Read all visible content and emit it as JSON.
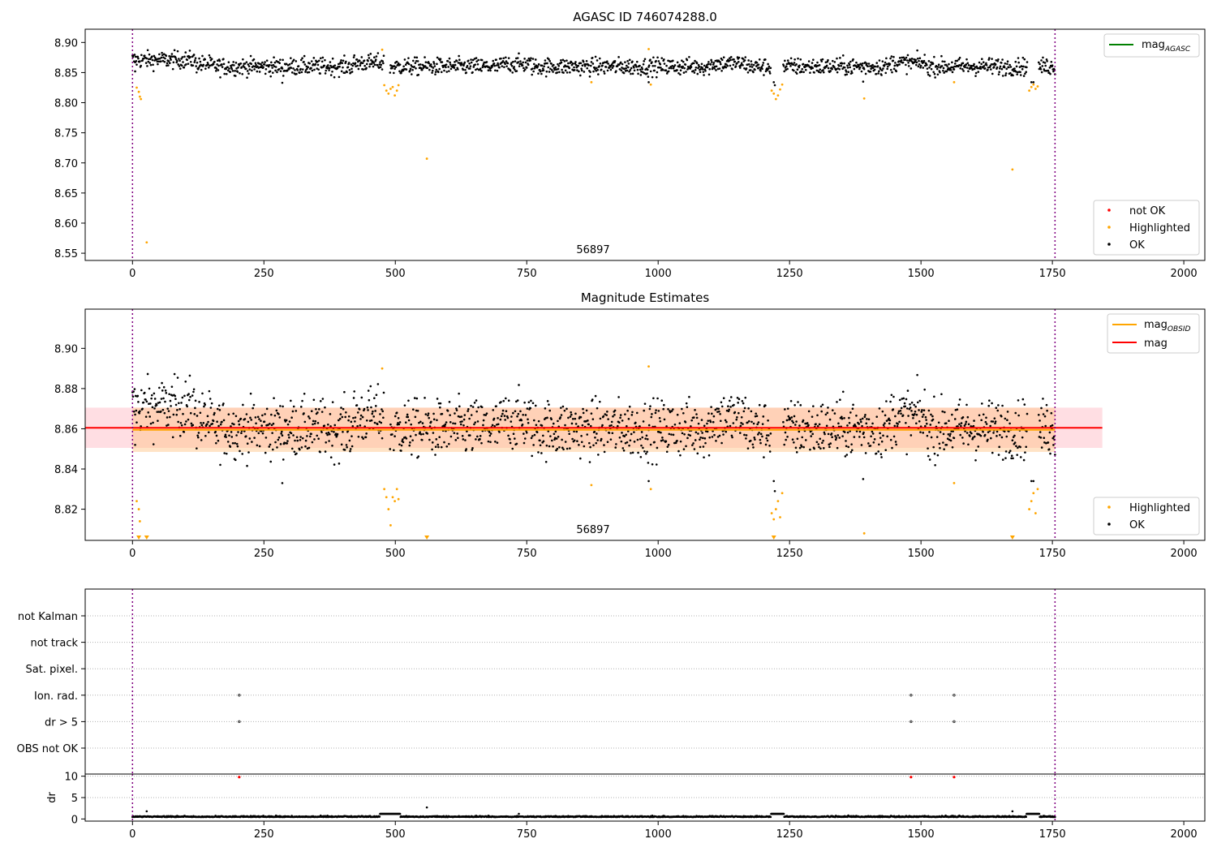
{
  "chart_data": [
    {
      "type": "scatter",
      "title": "AGASC ID 746074288.0",
      "annotation": "56897",
      "xlim": [
        -90,
        2040
      ],
      "ylim": [
        8.538,
        8.922
      ],
      "xticks": [
        0,
        250,
        500,
        750,
        1000,
        1250,
        1500,
        1750,
        2000
      ],
      "yticks": [
        8.55,
        8.6,
        8.65,
        8.7,
        8.75,
        8.8,
        8.85,
        8.9
      ],
      "vlines": [
        0,
        1755
      ],
      "baseline_level": 8.8615,
      "highlight_points": [
        [
          8,
          8.825
        ],
        [
          12,
          8.818
        ],
        [
          14,
          8.81
        ],
        [
          16,
          8.806
        ],
        [
          27,
          8.568
        ],
        [
          475,
          8.888
        ],
        [
          479,
          8.829
        ],
        [
          483,
          8.82
        ],
        [
          487,
          8.815
        ],
        [
          491,
          8.823
        ],
        [
          495,
          8.826
        ],
        [
          499,
          8.812
        ],
        [
          503,
          8.82
        ],
        [
          506,
          8.829
        ],
        [
          560,
          8.707
        ],
        [
          873,
          8.834
        ],
        [
          982,
          8.889
        ],
        [
          986,
          8.83
        ],
        [
          1216,
          8.82
        ],
        [
          1220,
          8.815
        ],
        [
          1224,
          8.806
        ],
        [
          1228,
          8.812
        ],
        [
          1232,
          8.822
        ],
        [
          1236,
          8.83
        ],
        [
          1392,
          8.807
        ],
        [
          1563,
          8.834
        ],
        [
          1674,
          8.689
        ],
        [
          1706,
          8.82
        ],
        [
          1710,
          8.826
        ],
        [
          1714,
          8.83
        ],
        [
          1718,
          8.823
        ],
        [
          1722,
          8.827
        ]
      ],
      "legends": [
        {
          "position": "upper-right",
          "entries": [
            {
              "label": "mag",
              "subscript": "AGASC",
              "color": "#008000",
              "marker": "line"
            }
          ]
        },
        {
          "position": "lower-right",
          "entries": [
            {
              "label": "not OK",
              "color": "#ff0000",
              "marker": "dot"
            },
            {
              "label": "Highlighted",
              "color": "#ffa500",
              "marker": "dot"
            },
            {
              "label": "OK",
              "color": "#000000",
              "marker": "dot"
            }
          ]
        }
      ]
    },
    {
      "type": "scatter",
      "title": "Magnitude Estimates",
      "annotation": "56897",
      "xlim": [
        -90,
        2040
      ],
      "ylim": [
        8.8045,
        8.9195
      ],
      "xticks": [
        0,
        250,
        500,
        750,
        1000,
        1250,
        1500,
        1750,
        2000
      ],
      "yticks": [
        8.82,
        8.84,
        8.86,
        8.88,
        8.9
      ],
      "vlines": [
        0,
        1755
      ],
      "mag": 8.8605,
      "mag_band": [
        8.8505,
        8.8705
      ],
      "mag_obsid": 8.8595,
      "mag_obsid_band": [
        8.8485,
        8.8705
      ],
      "band_xrange_mag": [
        -90,
        1845
      ],
      "band_xrange_obsid": [
        0,
        1755
      ],
      "highlight_points": [
        [
          8,
          8.824
        ],
        [
          12,
          8.82
        ],
        [
          14,
          8.814
        ],
        [
          475,
          8.89
        ],
        [
          479,
          8.83
        ],
        [
          483,
          8.826
        ],
        [
          487,
          8.82
        ],
        [
          491,
          8.812
        ],
        [
          495,
          8.826
        ],
        [
          499,
          8.824
        ],
        [
          503,
          8.83
        ],
        [
          506,
          8.825
        ],
        [
          873,
          8.832
        ],
        [
          982,
          8.891
        ],
        [
          986,
          8.83
        ],
        [
          1216,
          8.818
        ],
        [
          1220,
          8.815
        ],
        [
          1224,
          8.82
        ],
        [
          1228,
          8.824
        ],
        [
          1232,
          8.816
        ],
        [
          1236,
          8.828
        ],
        [
          1392,
          8.808
        ],
        [
          1563,
          8.833
        ],
        [
          1706,
          8.82
        ],
        [
          1710,
          8.824
        ],
        [
          1714,
          8.828
        ],
        [
          1718,
          8.818
        ],
        [
          1722,
          8.83
        ]
      ],
      "clipped_low_markers": [
        12,
        27,
        560,
        1220,
        1674
      ],
      "legends": [
        {
          "position": "upper-right",
          "entries": [
            {
              "label": "mag",
              "subscript": "OBSID",
              "color": "#ffa500",
              "marker": "line"
            },
            {
              "label": "mag",
              "color": "#ff0000",
              "marker": "line"
            }
          ]
        },
        {
          "position": "lower-right",
          "entries": [
            {
              "label": "Highlighted",
              "color": "#ffa500",
              "marker": "dot"
            },
            {
              "label": "OK",
              "color": "#000000",
              "marker": "dot"
            }
          ]
        }
      ]
    },
    {
      "type": "scatter",
      "xlim": [
        -90,
        2040
      ],
      "categories": [
        "not Kalman",
        "not track",
        "Sat. pixel.",
        "Ion. rad.",
        "dr > 5",
        "OBS not OK"
      ],
      "vlines": [
        0,
        1755
      ],
      "flag_points": [
        {
          "category": "Ion. rad.",
          "x": [
            203,
            1481,
            1563
          ]
        },
        {
          "category": "dr > 5",
          "x": [
            203,
            1481,
            1563
          ]
        }
      ]
    },
    {
      "type": "scatter",
      "ylabel": "dr",
      "xlim": [
        -90,
        2040
      ],
      "ylim": [
        -0.5,
        10.5
      ],
      "xticks": [
        0,
        250,
        500,
        750,
        1000,
        1250,
        1500,
        1750,
        2000
      ],
      "yticks": [
        0,
        5,
        10
      ],
      "vlines": [
        0,
        1755
      ],
      "outliers_red": [
        [
          203,
          9.8
        ],
        [
          1481,
          9.8
        ],
        [
          1563,
          9.8
        ]
      ],
      "spikes": [
        [
          27,
          1.8
        ],
        [
          560,
          2.7
        ],
        [
          735,
          1.2
        ],
        [
          1674,
          1.8
        ]
      ]
    }
  ]
}
